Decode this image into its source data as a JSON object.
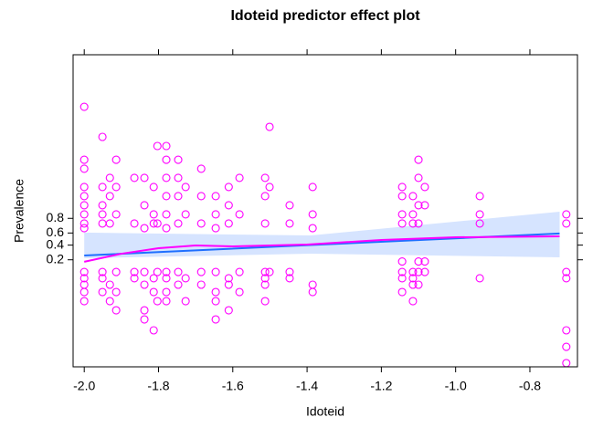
{
  "chart_data": {
    "type": "scatter",
    "title": "Idoteid predictor effect plot",
    "x_label": "Idoteid",
    "y_label": "Prevalence",
    "color": "#ff00ff",
    "x": [
      -2.0,
      -2.0,
      -2.0,
      -2.0,
      -2.0,
      -2.0,
      -2.0,
      -2.0,
      -2.0,
      -2.0,
      -2.0,
      -2.0,
      -2.0,
      -2.0,
      -1.951,
      -1.951,
      -1.951,
      -1.951,
      -1.951,
      -1.951,
      -1.951,
      -1.951,
      -1.931,
      -1.931,
      -1.931,
      -1.931,
      -1.931,
      -1.914,
      -1.914,
      -1.914,
      -1.914,
      -1.914,
      -1.914,
      -1.865,
      -1.865,
      -1.865,
      -1.865,
      -1.838,
      -1.838,
      -1.838,
      -1.838,
      -1.838,
      -1.838,
      -1.838,
      -1.813,
      -1.813,
      -1.813,
      -1.813,
      -1.813,
      -1.813,
      -1.803,
      -1.803,
      -1.803,
      -1.803,
      -1.779,
      -1.779,
      -1.779,
      -1.779,
      -1.779,
      -1.779,
      -1.779,
      -1.779,
      -1.779,
      -1.779,
      -1.747,
      -1.747,
      -1.747,
      -1.747,
      -1.747,
      -1.747,
      -1.727,
      -1.727,
      -1.727,
      -1.727,
      -1.685,
      -1.685,
      -1.685,
      -1.685,
      -1.685,
      -1.646,
      -1.646,
      -1.646,
      -1.646,
      -1.646,
      -1.646,
      -1.646,
      -1.611,
      -1.611,
      -1.611,
      -1.611,
      -1.611,
      -1.611,
      -1.582,
      -1.582,
      -1.582,
      -1.582,
      -1.513,
      -1.513,
      -1.513,
      -1.513,
      -1.513,
      -1.513,
      -1.513,
      -1.501,
      -1.501,
      -1.501,
      -1.447,
      -1.447,
      -1.447,
      -1.447,
      -1.385,
      -1.385,
      -1.385,
      -1.385,
      -1.385,
      -1.144,
      -1.144,
      -1.144,
      -1.144,
      -1.144,
      -1.144,
      -1.144,
      -1.144,
      -1.115,
      -1.115,
      -1.115,
      -1.115,
      -1.115,
      -1.115,
      -1.115,
      -1.1,
      -1.1,
      -1.1,
      -1.1,
      -1.1,
      -1.1,
      -1.1,
      -1.083,
      -1.083,
      -1.083,
      -1.083,
      -0.935,
      -0.935,
      -0.935,
      -0.935,
      -0.702,
      -0.702,
      -0.702,
      -0.702,
      -0.702,
      -0.702,
      -0.702
    ],
    "values": [
      8.84,
      5.3,
      4.7,
      3.48,
      2.87,
      2.26,
      1.65,
      1.04,
      0.73,
      -2.2,
      -2.62,
      -3.05,
      -3.54,
      -4.15,
      6.83,
      3.48,
      2.26,
      1.65,
      1.04,
      -2.2,
      -2.62,
      -3.54,
      4.09,
      2.87,
      1.04,
      -3.05,
      -4.15,
      5.3,
      3.48,
      1.65,
      -2.2,
      -3.54,
      -4.76,
      4.09,
      1.04,
      -2.2,
      -2.62,
      4.09,
      2.26,
      0.73,
      -2.2,
      -3.05,
      -4.76,
      -5.37,
      3.48,
      1.65,
      1.04,
      -2.62,
      -3.54,
      -6.1,
      6.22,
      1.04,
      -2.2,
      -4.15,
      6.22,
      5.3,
      4.09,
      2.87,
      1.65,
      0.73,
      -2.2,
      -2.62,
      -3.54,
      -4.15,
      5.3,
      4.09,
      2.87,
      1.04,
      -2.2,
      -3.05,
      3.48,
      1.65,
      -2.62,
      -4.15,
      4.7,
      2.87,
      1.04,
      -2.2,
      -3.05,
      2.87,
      1.65,
      0.73,
      -2.2,
      -3.54,
      -4.15,
      -5.37,
      3.48,
      2.26,
      1.04,
      -2.62,
      -3.05,
      -4.76,
      4.09,
      1.65,
      -2.2,
      -3.54,
      4.09,
      2.87,
      1.04,
      -2.2,
      -2.62,
      -3.05,
      -4.15,
      7.5,
      3.48,
      -2.2,
      2.26,
      1.04,
      -2.2,
      -2.62,
      3.48,
      1.65,
      0.73,
      -3.05,
      -3.54,
      3.48,
      2.87,
      1.65,
      1.04,
      -1.5,
      -2.2,
      -2.62,
      -3.54,
      2.87,
      1.65,
      1.04,
      -2.2,
      -2.62,
      -3.05,
      -4.15,
      5.3,
      4.09,
      2.26,
      1.04,
      -1.5,
      -2.2,
      -3.05,
      3.48,
      2.26,
      -1.5,
      -2.2,
      2.87,
      1.65,
      1.04,
      -2.62,
      1.65,
      1.04,
      -2.2,
      -2.62,
      -6.1,
      -7.2,
      -8.29
    ],
    "fit": {
      "color": "#1f6fff",
      "band_color": "#d6e4ff",
      "x": [
        -2.0,
        -1.39,
        -0.72
      ],
      "values": [
        -1.1,
        -0.4,
        0.37
      ],
      "lower": [
        -1.28,
        -0.98,
        -1.22
      ],
      "upper": [
        0.43,
        0.24,
        1.83
      ]
    },
    "smooth": {
      "color": "#ff00ff",
      "x": [
        -2.0,
        -1.9,
        -1.8,
        -1.7,
        -1.6,
        -1.4,
        -1.2,
        -1.0,
        -0.72
      ],
      "values": [
        -1.52,
        -0.98,
        -0.61,
        -0.43,
        -0.49,
        -0.37,
        -0.06,
        0.12,
        0.18
      ]
    },
    "xlim": [
      -2.03,
      -0.672
    ],
    "ylim": [
      -8.54,
      12.32
    ],
    "xticks": [
      {
        "value": -2.0,
        "label": "-2.0"
      },
      -1.8,
      -1.6,
      -1.4,
      -1.2,
      {
        "value": -1.0,
        "label": "-1.0"
      },
      -0.8
    ],
    "yticks": [
      {
        "value": -1.386,
        "label": "0.2"
      },
      {
        "value": -0.405,
        "label": "0.4"
      },
      {
        "value": 0.405,
        "label": "0.6"
      },
      {
        "value": 1.386,
        "label": "0.8"
      }
    ]
  }
}
